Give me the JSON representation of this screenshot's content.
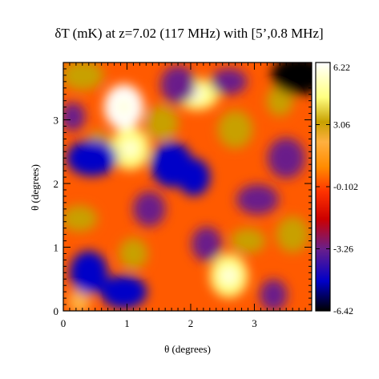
{
  "chart_data": {
    "type": "heatmap",
    "title": "δT (mK) at z=7.02 (117 MHz) with [5’,0.8 MHz]",
    "xlabel": "θ (degrees)",
    "ylabel": "θ (degrees)",
    "xlim": [
      0,
      3.9
    ],
    "ylim": [
      0,
      3.9
    ],
    "x_ticks": [
      0,
      1,
      2,
      3
    ],
    "y_ticks": [
      0,
      1,
      2,
      3
    ],
    "colorbar": {
      "label_ticks": [
        "6.22",
        "3.06",
        "-0.102",
        "-3.26",
        "-6.42"
      ],
      "range": [
        -6.42,
        6.22
      ],
      "colormap": [
        "#000000",
        "#0000c8",
        "#6a1f8a",
        "#cc0000",
        "#ff3300",
        "#ff8c00",
        "#ffb040",
        "#c8a000",
        "#ffff80",
        "#ffffff"
      ]
    },
    "features": [
      {
        "x": 0.95,
        "y": 3.2,
        "value": 5.8
      },
      {
        "x": 1.05,
        "y": 2.55,
        "value": 4.5
      },
      {
        "x": 0.3,
        "y": 3.7,
        "value": 4.0
      },
      {
        "x": 2.6,
        "y": 0.55,
        "value": 5.5
      },
      {
        "x": 3.6,
        "y": 1.2,
        "value": 3.5
      },
      {
        "x": 2.1,
        "y": 3.4,
        "value": 4.2
      },
      {
        "x": 3.4,
        "y": 3.3,
        "value": 3.3
      },
      {
        "x": 2.7,
        "y": 2.85,
        "value": 3.8
      },
      {
        "x": 0.25,
        "y": 1.45,
        "value": 3.2
      },
      {
        "x": 0.55,
        "y": 2.6,
        "value": 3.0
      },
      {
        "x": 1.55,
        "y": 2.95,
        "value": 3.4
      },
      {
        "x": 2.9,
        "y": 1.1,
        "value": 3.0
      },
      {
        "x": 0.25,
        "y": 0.15,
        "value": 2.5
      },
      {
        "x": 1.1,
        "y": 0.9,
        "value": 2.8
      },
      {
        "x": 0.45,
        "y": 2.4,
        "value": -5.2
      },
      {
        "x": 0.4,
        "y": 0.6,
        "value": -5.5
      },
      {
        "x": 1.7,
        "y": 2.3,
        "value": -5.0
      },
      {
        "x": 3.7,
        "y": 3.7,
        "value": -5.8
      },
      {
        "x": 2.05,
        "y": 2.1,
        "value": -4.5
      },
      {
        "x": 3.5,
        "y": 2.4,
        "value": -4.2
      },
      {
        "x": 0.95,
        "y": 0.3,
        "value": -4.6
      },
      {
        "x": 2.25,
        "y": 1.05,
        "value": -4.0
      },
      {
        "x": 1.8,
        "y": 3.55,
        "value": -3.8
      },
      {
        "x": 3.05,
        "y": 1.75,
        "value": -4.0
      },
      {
        "x": 3.3,
        "y": 0.25,
        "value": -3.5
      },
      {
        "x": 1.35,
        "y": 1.6,
        "value": -3.4
      },
      {
        "x": 2.6,
        "y": 3.6,
        "value": -3.2
      },
      {
        "x": 0.15,
        "y": 3.05,
        "value": -3.0
      }
    ]
  }
}
